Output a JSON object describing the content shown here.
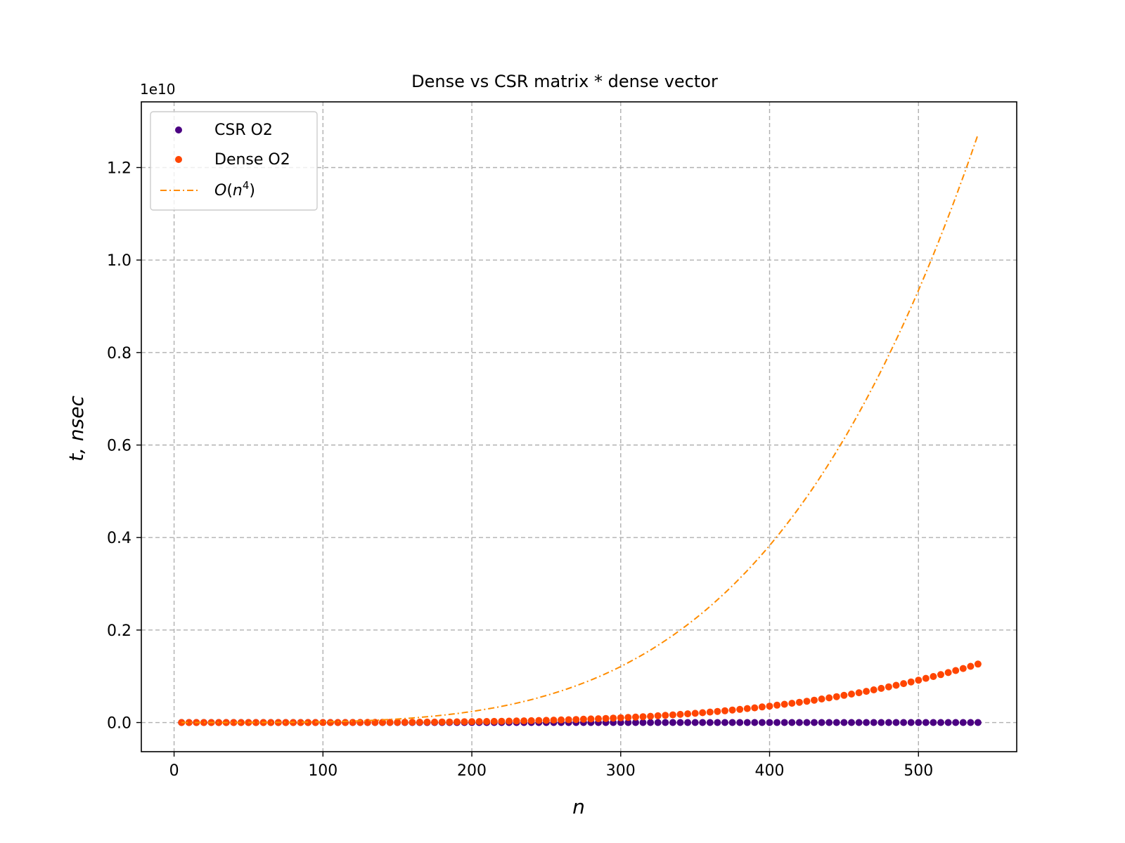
{
  "chart_data": {
    "type": "scatter",
    "title": "Dense vs CSR matrix * dense vector",
    "xlabel": "n",
    "ylabel": "t, nsec",
    "offset_text": "1e10",
    "xlim": [
      -22,
      566
    ],
    "ylim": [
      -0.063,
      1.342
    ],
    "xticks": [
      0,
      100,
      200,
      300,
      400,
      500
    ],
    "xtick_labels": [
      "0",
      "100",
      "200",
      "300",
      "400",
      "500"
    ],
    "yticks": [
      0.0,
      0.2,
      0.4,
      0.6,
      0.8,
      1.0,
      1.2
    ],
    "ytick_labels": [
      "0.0",
      "0.2",
      "0.4",
      "0.6",
      "0.8",
      "1.0",
      "1.2"
    ],
    "grid": true,
    "legend_position": "top-left",
    "legend": [
      "CSR O2",
      "Dense O2",
      "O(n^4)"
    ],
    "series": [
      {
        "name": "CSR O2",
        "kind": "scatter",
        "color": "#4b0082",
        "x": [
          5,
          10,
          15,
          20,
          25,
          30,
          35,
          40,
          45,
          50,
          55,
          60,
          65,
          70,
          75,
          80,
          85,
          90,
          95,
          100,
          105,
          110,
          115,
          120,
          125,
          130,
          135,
          140,
          145,
          150,
          155,
          160,
          165,
          170,
          175,
          180,
          185,
          190,
          195,
          200,
          205,
          210,
          215,
          220,
          225,
          230,
          235,
          240,
          245,
          250,
          255,
          260,
          265,
          270,
          275,
          280,
          285,
          290,
          295,
          300,
          305,
          310,
          315,
          320,
          325,
          330,
          335,
          340,
          345,
          350,
          355,
          360,
          365,
          370,
          375,
          380,
          385,
          390,
          395,
          400,
          405,
          410,
          415,
          420,
          425,
          430,
          435,
          440,
          445,
          450,
          455,
          460,
          465,
          470,
          475,
          480,
          485,
          490,
          495,
          500,
          505,
          510,
          515,
          520,
          525,
          530,
          535,
          540
        ],
        "y": [
          0,
          0,
          0,
          0,
          0,
          0,
          0,
          0,
          0,
          0,
          0,
          0,
          0,
          0,
          0,
          0,
          0,
          0,
          0,
          0,
          0,
          0,
          0,
          0,
          0,
          0,
          0,
          0,
          0,
          0,
          0,
          0,
          0,
          0,
          0,
          0,
          0,
          0,
          0,
          0,
          0,
          0,
          0,
          0,
          0,
          0,
          0,
          0,
          0,
          0,
          0,
          0,
          0,
          0,
          0,
          0,
          0,
          0,
          0,
          0,
          0,
          0,
          0,
          0,
          0,
          0,
          0,
          0,
          0,
          0,
          0,
          0,
          0,
          0,
          0,
          0,
          0,
          0,
          0,
          0,
          0,
          0,
          0,
          0,
          0,
          0,
          0,
          0,
          0,
          0,
          0,
          0,
          0,
          0,
          0,
          0,
          0,
          0,
          0,
          0,
          0,
          0,
          0,
          0,
          0,
          0,
          0,
          0
        ]
      },
      {
        "name": "Dense O2",
        "kind": "scatter",
        "color": "#ff4500",
        "x": [
          5,
          10,
          15,
          20,
          25,
          30,
          35,
          40,
          45,
          50,
          55,
          60,
          65,
          70,
          75,
          80,
          85,
          90,
          95,
          100,
          105,
          110,
          115,
          120,
          125,
          130,
          135,
          140,
          145,
          150,
          155,
          160,
          165,
          170,
          175,
          180,
          185,
          190,
          195,
          200,
          205,
          210,
          215,
          220,
          225,
          230,
          235,
          240,
          245,
          250,
          255,
          260,
          265,
          270,
          275,
          280,
          285,
          290,
          295,
          300,
          305,
          310,
          315,
          320,
          325,
          330,
          335,
          340,
          345,
          350,
          355,
          360,
          365,
          370,
          375,
          380,
          385,
          390,
          395,
          400,
          405,
          410,
          415,
          420,
          425,
          430,
          435,
          440,
          445,
          450,
          455,
          460,
          465,
          470,
          475,
          480,
          485,
          490,
          495,
          500,
          505,
          510,
          515,
          520,
          525,
          530,
          535,
          540
        ],
        "y": [
          0,
          0,
          0,
          0,
          0,
          0,
          0,
          0,
          0,
          0,
          0,
          0,
          0,
          0,
          0,
          0,
          0,
          0,
          0,
          0,
          0.0001,
          0.0001,
          0.0001,
          0.0002,
          0.0002,
          0.0003,
          0.0003,
          0.0004,
          0.0004,
          0.0005,
          0.0006,
          0.0007,
          0.0008,
          0.0009,
          0.001,
          0.0012,
          0.0013,
          0.0015,
          0.0017,
          0.0019,
          0.0021,
          0.0023,
          0.0025,
          0.0028,
          0.0031,
          0.0034,
          0.0037,
          0.004,
          0.0044,
          0.0048,
          0.0052,
          0.0056,
          0.0061,
          0.0066,
          0.0071,
          0.0078,
          0.0082,
          0.0089,
          0.0096,
          0.0104,
          0.0111,
          0.0118,
          0.0127,
          0.0136,
          0.0146,
          0.0155,
          0.0166,
          0.0176,
          0.0188,
          0.02,
          0.0213,
          0.0226,
          0.024,
          0.0254,
          0.027,
          0.0285,
          0.0302,
          0.0318,
          0.0337,
          0.0355,
          0.0375,
          0.0395,
          0.0416,
          0.0438,
          0.0461,
          0.0484,
          0.0509,
          0.0534,
          0.056,
          0.0588,
          0.0616,
          0.0645,
          0.0675,
          0.0706,
          0.0739,
          0.0772,
          0.0806,
          0.0842,
          0.0879,
          0.0917,
          0.0956,
          0.0996,
          0.1037,
          0.108,
          0.1124,
          0.1169,
          0.1216,
          0.1264
        ]
      },
      {
        "name": "O(n^4)",
        "kind": "line",
        "style": "dashdot",
        "color": "#ff8c00",
        "x": [
          5,
          50,
          100,
          150,
          200,
          250,
          300,
          350,
          400,
          450,
          500,
          540
        ],
        "y": [
          0,
          0.0001,
          0.0014,
          0.0073,
          0.0228,
          0.0557,
          0.1155,
          0.2139,
          0.3648,
          0.5844,
          0.8908,
          1.2714
        ]
      }
    ]
  }
}
